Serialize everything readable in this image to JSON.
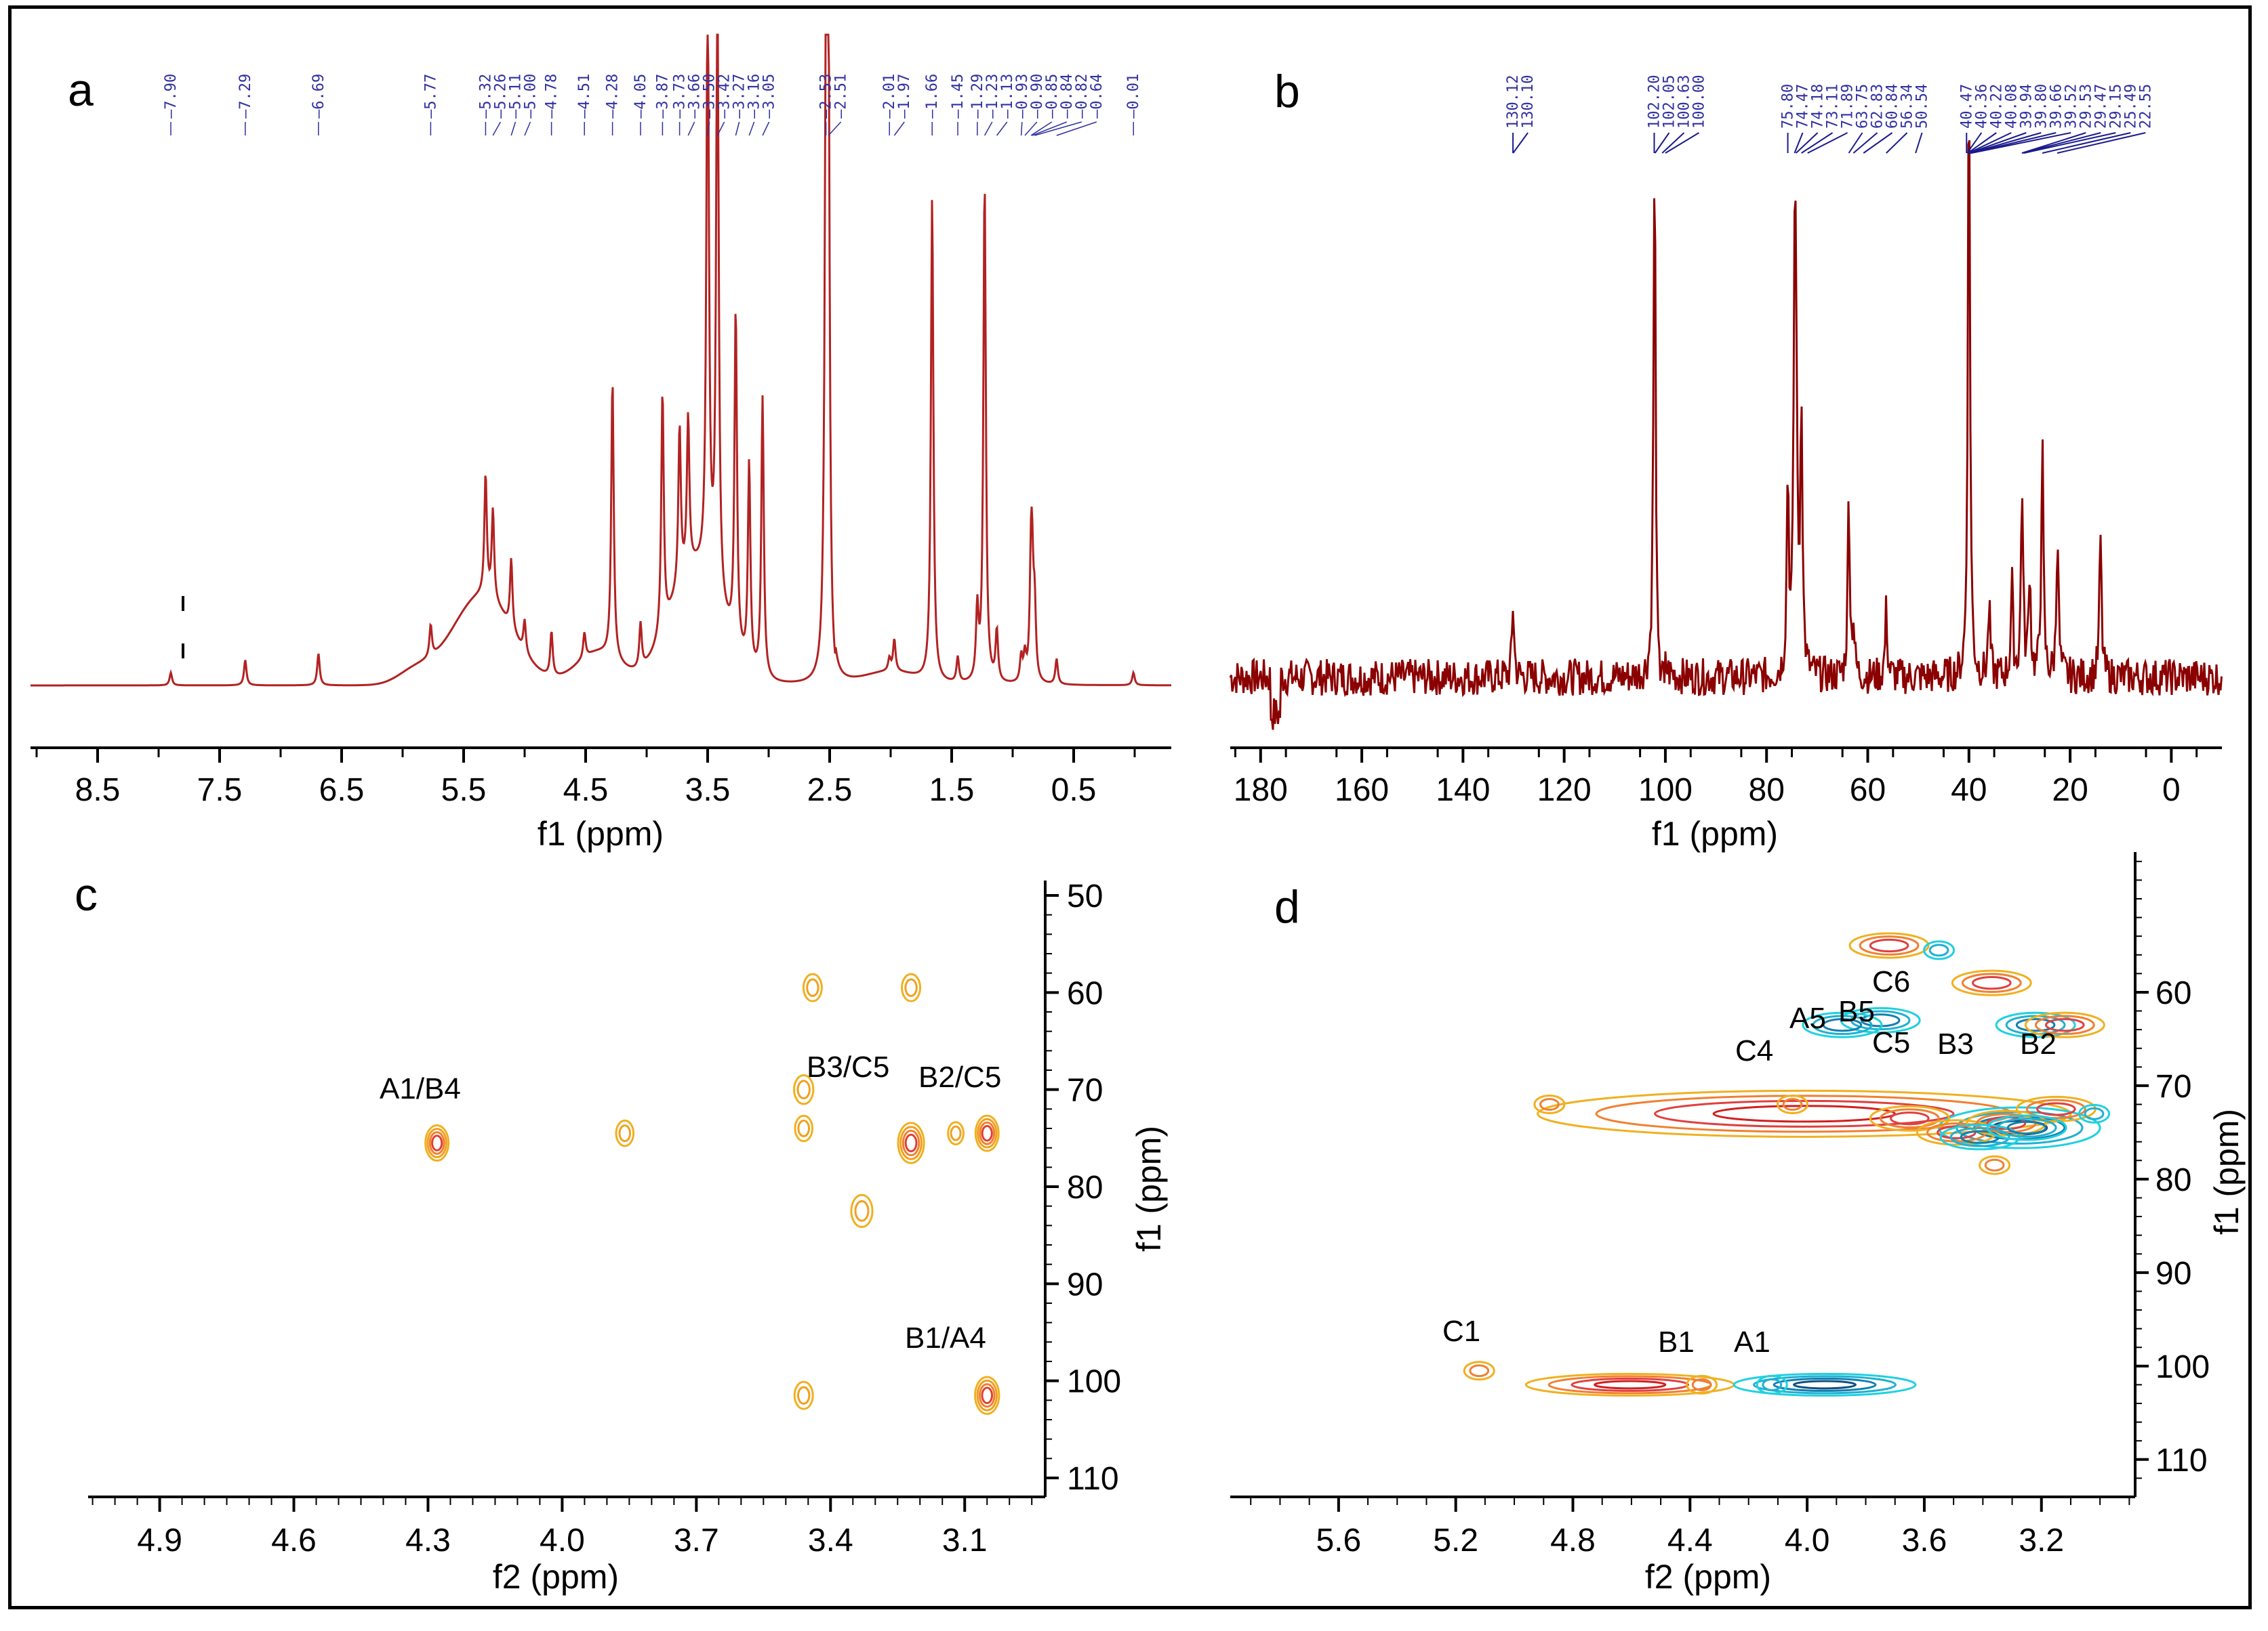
{
  "chart_data": [
    {
      "panel": "a",
      "type": "line",
      "title": "",
      "xlabel": "f1 (ppm)",
      "ylabel": "",
      "xlim": [
        9.05,
        -0.3
      ],
      "x_ticks": [
        "8.5",
        "7.5",
        "6.5",
        "5.5",
        "4.5",
        "3.5",
        "2.5",
        "1.5",
        "0.5"
      ],
      "x_tick_values": [
        8.5,
        7.5,
        6.5,
        5.5,
        4.5,
        3.5,
        2.5,
        1.5,
        0.5
      ],
      "peak_labels": [
        "7.90",
        "7.29",
        "6.69",
        "5.77",
        "5.32",
        "5.26",
        "5.11",
        "5.00",
        "4.78",
        "4.51",
        "4.28",
        "4.05",
        "3.87",
        "3.73",
        "3.66",
        "3.50",
        "3.42",
        "3.27",
        "3.16",
        "3.05",
        "2.53",
        "2.51",
        "2.01",
        "1.97",
        "1.66",
        "1.45",
        "1.29",
        "1.23",
        "1.13",
        "0.93",
        "0.90",
        "0.85",
        "0.84",
        "0.82",
        "0.64",
        "0.01"
      ],
      "peaks": [
        {
          "ppm": 7.9,
          "height": 0.02
        },
        {
          "ppm": 7.29,
          "height": 0.04
        },
        {
          "ppm": 6.69,
          "height": 0.05
        },
        {
          "ppm": 5.77,
          "height": 0.05
        },
        {
          "ppm": 5.32,
          "height": 0.19
        },
        {
          "ppm": 5.26,
          "height": 0.14
        },
        {
          "ppm": 5.11,
          "height": 0.11
        },
        {
          "ppm": 5.0,
          "height": 0.05
        },
        {
          "ppm": 4.78,
          "height": 0.07
        },
        {
          "ppm": 4.51,
          "height": 0.04
        },
        {
          "ppm": 4.28,
          "height": 0.44
        },
        {
          "ppm": 4.05,
          "height": 0.07
        },
        {
          "ppm": 3.87,
          "height": 0.38
        },
        {
          "ppm": 3.73,
          "height": 0.25
        },
        {
          "ppm": 3.66,
          "height": 0.24
        },
        {
          "ppm": 3.5,
          "height": 0.95
        },
        {
          "ppm": 3.42,
          "height": 1.0
        },
        {
          "ppm": 3.27,
          "height": 0.53
        },
        {
          "ppm": 3.16,
          "height": 0.32
        },
        {
          "ppm": 3.05,
          "height": 0.44
        },
        {
          "ppm": 2.53,
          "height": 1.0
        },
        {
          "ppm": 2.51,
          "height": 0.9
        },
        {
          "ppm": 2.01,
          "height": 0.02
        },
        {
          "ppm": 1.97,
          "height": 0.05
        },
        {
          "ppm": 1.66,
          "height": 0.76
        },
        {
          "ppm": 1.45,
          "height": 0.04
        },
        {
          "ppm": 1.29,
          "height": 0.11
        },
        {
          "ppm": 1.23,
          "height": 0.79
        },
        {
          "ppm": 1.13,
          "height": 0.08
        },
        {
          "ppm": 0.93,
          "height": 0.04
        },
        {
          "ppm": 0.9,
          "height": 0.04
        },
        {
          "ppm": 0.85,
          "height": 0.16
        },
        {
          "ppm": 0.84,
          "height": 0.14
        },
        {
          "ppm": 0.82,
          "height": 0.11
        },
        {
          "ppm": 0.64,
          "height": 0.04
        },
        {
          "ppm": 0.01,
          "height": 0.02
        }
      ],
      "series_color": "#b22222"
    },
    {
      "panel": "b",
      "type": "line",
      "title": "",
      "xlabel": "f1 (ppm)",
      "ylabel": "",
      "xlim": [
        186,
        -10
      ],
      "x_ticks": [
        "180",
        "160",
        "140",
        "120",
        "100",
        "80",
        "60",
        "40",
        "20",
        "0"
      ],
      "x_tick_values": [
        180,
        160,
        140,
        120,
        100,
        80,
        60,
        40,
        20,
        0
      ],
      "peak_labels": [
        "130.12",
        "130.10",
        "102.20",
        "102.05",
        "100.63",
        "100.00",
        "75.80",
        "74.47",
        "74.18",
        "73.11",
        "71.89",
        "63.75",
        "62.83",
        "60.84",
        "56.34",
        "50.54",
        "40.47",
        "40.36",
        "40.22",
        "40.08",
        "39.94",
        "39.80",
        "39.66",
        "39.52",
        "29.53",
        "29.47",
        "29.15",
        "25.49",
        "22.55"
      ],
      "peaks": [
        {
          "ppm": 130.1,
          "height": 0.12
        },
        {
          "ppm": 102.2,
          "height": 0.45
        },
        {
          "ppm": 102.05,
          "height": 0.43
        },
        {
          "ppm": 100.63,
          "height": 0.06
        },
        {
          "ppm": 75.8,
          "height": 0.32
        },
        {
          "ppm": 74.47,
          "height": 0.53
        },
        {
          "ppm": 74.18,
          "height": 0.47
        },
        {
          "ppm": 73.11,
          "height": 0.44
        },
        {
          "ppm": 63.75,
          "height": 0.29
        },
        {
          "ppm": 62.83,
          "height": 0.08
        },
        {
          "ppm": 56.34,
          "height": 0.11
        },
        {
          "ppm": 40.0,
          "height": 1.0
        },
        {
          "ppm": 36.0,
          "height": 0.11
        },
        {
          "ppm": 31.5,
          "height": 0.15
        },
        {
          "ppm": 29.5,
          "height": 0.31
        },
        {
          "ppm": 28.0,
          "height": 0.17
        },
        {
          "ppm": 25.5,
          "height": 0.38
        },
        {
          "ppm": 22.5,
          "height": 0.24
        },
        {
          "ppm": 14.0,
          "height": 0.23
        }
      ],
      "series_color": "#8b0000"
    },
    {
      "panel": "c",
      "type": "scatter",
      "title": "",
      "xlabel": "f2 (ppm)",
      "ylabel": "f1 (ppm)",
      "xlim": [
        5.06,
        2.92
      ],
      "ylim": [
        50,
        110
      ],
      "x_ticks": [
        "4.9",
        "4.6",
        "4.3",
        "4.0",
        "3.7",
        "3.4",
        "3.1"
      ],
      "x_tick_values": [
        4.9,
        4.6,
        4.3,
        4.0,
        3.7,
        3.4,
        3.1
      ],
      "y_ticks": [
        "50",
        "60",
        "70",
        "80",
        "90",
        "100",
        "110"
      ],
      "y_tick_values": [
        50,
        60,
        70,
        80,
        90,
        100,
        110
      ],
      "annotations": [
        "A1/B4",
        "B3/C5",
        "B2/C5",
        "B1/A4"
      ],
      "cross_peaks": [
        {
          "f2": 4.28,
          "f1": 75.5,
          "size": 1.0
        },
        {
          "f2": 3.86,
          "f1": 74.5,
          "size": 0.4
        },
        {
          "f2": 3.44,
          "f1": 59.5,
          "size": 0.5
        },
        {
          "f2": 3.22,
          "f1": 59.5,
          "size": 0.5
        },
        {
          "f2": 3.46,
          "f1": 70.0,
          "size": 0.6
        },
        {
          "f2": 3.46,
          "f1": 74.0,
          "size": 0.4
        },
        {
          "f2": 3.22,
          "f1": 75.5,
          "size": 1.3
        },
        {
          "f2": 3.12,
          "f1": 74.5,
          "size": 0.2
        },
        {
          "f2": 3.05,
          "f1": 74.5,
          "size": 1.0
        },
        {
          "f2": 3.33,
          "f1": 82.5,
          "size": 0.8
        },
        {
          "f2": 3.46,
          "f1": 101.5,
          "size": 0.5
        },
        {
          "f2": 3.05,
          "f1": 101.5,
          "size": 1.1
        }
      ],
      "series_color": "#f0b020"
    },
    {
      "panel": "d",
      "type": "scatter",
      "title": "",
      "xlabel": "f2 (ppm)",
      "ylabel": "f1 (ppm)",
      "xlim": [
        5.97,
        2.88
      ],
      "ylim": [
        45,
        114
      ],
      "x_ticks": [
        "5.6",
        "5.2",
        "4.8",
        "4.4",
        "4.0",
        "3.6",
        "3.2"
      ],
      "x_tick_values": [
        5.6,
        5.2,
        4.8,
        4.4,
        4.0,
        3.6,
        3.2
      ],
      "y_ticks": [
        "60",
        "70",
        "80",
        "90",
        "100",
        "110"
      ],
      "y_tick_values": [
        60,
        70,
        80,
        90,
        100,
        110
      ],
      "annotations": [
        "C6",
        "A5",
        "B5",
        "C4",
        "C5",
        "B3",
        "B2",
        "C1",
        "B1",
        "A1"
      ],
      "cross_peaks": [
        {
          "f2": 3.72,
          "f1": 55.0,
          "phase": "positive"
        },
        {
          "f2": 3.55,
          "f1": 55.5,
          "phase": "negative"
        },
        {
          "f2": 3.37,
          "f1": 59.0,
          "phase": "positive"
        },
        {
          "f2": 3.75,
          "f1": 63.0,
          "phase": "negative"
        },
        {
          "f2": 3.88,
          "f1": 63.5,
          "phase": "negative"
        },
        {
          "f2": 3.22,
          "f1": 63.5,
          "phase": "negative"
        },
        {
          "f2": 3.12,
          "f1": 63.5,
          "phase": "positive"
        },
        {
          "f2": 4.88,
          "f1": 72.0,
          "phase": "positive"
        },
        {
          "f2": 4.05,
          "f1": 72.0,
          "phase": "positive"
        },
        {
          "f2": 3.65,
          "f1": 73.5,
          "phase": "positive"
        },
        {
          "f2": 3.49,
          "f1": 75.0,
          "phase": "positive"
        },
        {
          "f2": 3.32,
          "f1": 74.0,
          "phase": "positive"
        },
        {
          "f2": 3.15,
          "f1": 72.5,
          "phase": "positive"
        },
        {
          "f2": 3.41,
          "f1": 75.5,
          "phase": "negative"
        },
        {
          "f2": 3.25,
          "f1": 74.5,
          "phase": "negative"
        },
        {
          "f2": 3.02,
          "f1": 73.0,
          "phase": "negative"
        },
        {
          "f2": 3.36,
          "f1": 78.5,
          "phase": "positive"
        },
        {
          "f2": 5.12,
          "f1": 100.5,
          "phase": "positive"
        },
        {
          "f2": 4.36,
          "f1": 102.0,
          "phase": "positive"
        },
        {
          "f2": 4.12,
          "f1": 102.0,
          "phase": "negative"
        }
      ],
      "series_colors": {
        "positive": "#f0b020",
        "negative": "#20d0e0"
      }
    }
  ],
  "panel_letters": [
    "a",
    "b",
    "c",
    "d"
  ]
}
